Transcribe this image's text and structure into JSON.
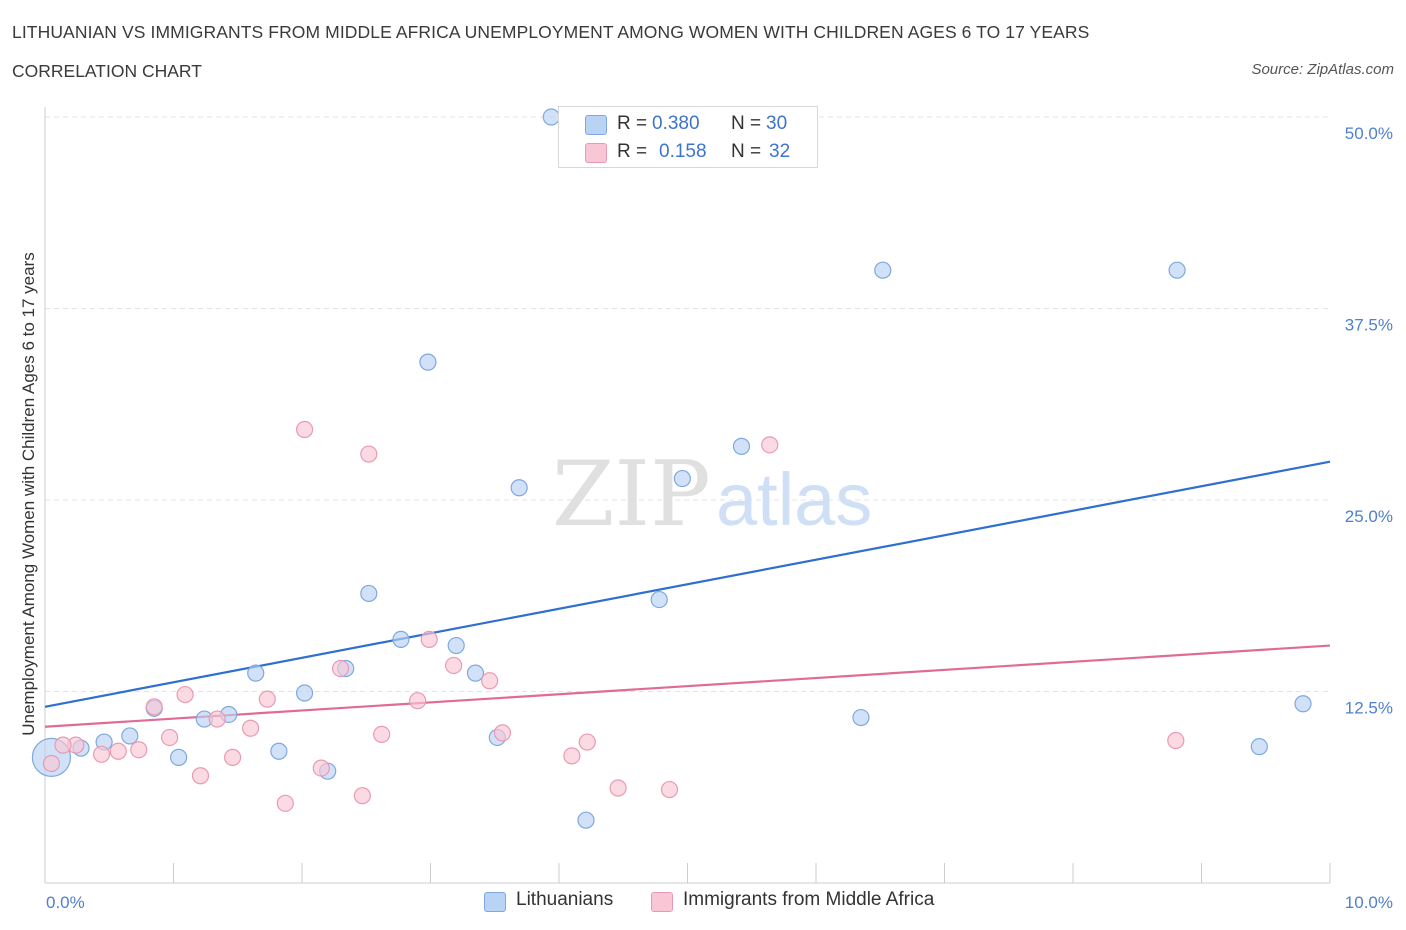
{
  "header": {
    "title": "LITHUANIAN VS IMMIGRANTS FROM MIDDLE AFRICA UNEMPLOYMENT AMONG WOMEN WITH CHILDREN AGES 6 TO 17 YEARS",
    "subtitle": "CORRELATION CHART",
    "source": "Source: ZipAtlas.com"
  },
  "watermark": {
    "zip": "ZIP",
    "atlas": "atlas"
  },
  "legend_top": {
    "rows": [
      {
        "r_label": "R =",
        "r_value": "0.380",
        "n_label": "N =",
        "n_value": "30"
      },
      {
        "r_label": "R =",
        "r_value": "0.158",
        "n_label": "N =",
        "n_value": "32"
      }
    ]
  },
  "legend_bottom": {
    "items": [
      {
        "label": "Lithuanians"
      },
      {
        "label": "Immigrants from Middle Africa"
      }
    ]
  },
  "colors": {
    "blue_fill": "#b9d3f5",
    "blue_stroke": "#7fa8e0",
    "blue_line": "#2f6fd0",
    "pink_fill": "#f9c6d6",
    "pink_stroke": "#e99ab3",
    "pink_line": "#e06c96",
    "grid": "#e3e3e3",
    "tick_label": "#4f7fcf"
  },
  "chart_data": {
    "type": "scatter",
    "title": "LITHUANIAN VS IMMIGRANTS FROM MIDDLE AFRICA UNEMPLOYMENT AMONG WOMEN WITH CHILDREN AGES 6 TO 17 YEARS",
    "xlabel": "",
    "ylabel": "Unemployment Among Women with Children Ages 6 to 17 years",
    "xlim": [
      0,
      10
    ],
    "ylim": [
      0,
      50
    ],
    "x_tick_labels": [
      "0.0%",
      "10.0%"
    ],
    "y_ticks": [
      12.5,
      25.0,
      37.5,
      50.0
    ],
    "y_tick_labels": [
      "12.5%",
      "25.0%",
      "37.5%",
      "50.0%"
    ],
    "grid": true,
    "legend_position": "bottom",
    "series": [
      {
        "name": "Lithuanians",
        "points": [
          [
            0.05,
            8.2
          ],
          [
            0.28,
            8.8
          ],
          [
            0.46,
            9.2
          ],
          [
            0.66,
            9.6
          ],
          [
            0.85,
            11.4
          ],
          [
            1.04,
            8.2
          ],
          [
            1.24,
            10.7
          ],
          [
            1.43,
            11.0
          ],
          [
            1.64,
            13.7
          ],
          [
            1.82,
            8.6
          ],
          [
            2.02,
            12.4
          ],
          [
            2.2,
            7.3
          ],
          [
            2.34,
            14.0
          ],
          [
            2.52,
            18.9
          ],
          [
            2.77,
            15.9
          ],
          [
            2.98,
            34.0
          ],
          [
            3.2,
            15.5
          ],
          [
            3.35,
            13.7
          ],
          [
            3.52,
            9.5
          ],
          [
            3.69,
            25.8
          ],
          [
            3.94,
            50.0
          ],
          [
            4.21,
            4.1
          ],
          [
            4.78,
            18.5
          ],
          [
            4.96,
            26.4
          ],
          [
            5.42,
            28.5
          ],
          [
            6.35,
            10.8
          ],
          [
            6.52,
            40.0
          ],
          [
            8.81,
            40.0
          ],
          [
            9.45,
            8.9
          ],
          [
            9.79,
            11.7
          ]
        ],
        "sizes": [
          34,
          12,
          12,
          12,
          12,
          12,
          12,
          12,
          12,
          12,
          12,
          12,
          12,
          12,
          12,
          12,
          12,
          12,
          12,
          12,
          12,
          12,
          12,
          12,
          12,
          12,
          12,
          12,
          12,
          12
        ],
        "trend": {
          "x": [
            0,
            10
          ],
          "y": [
            11.5,
            27.5
          ]
        }
      },
      {
        "name": "Immigrants from Middle Africa",
        "points": [
          [
            0.05,
            7.8
          ],
          [
            0.24,
            9.0
          ],
          [
            0.44,
            8.4
          ],
          [
            0.57,
            8.6
          ],
          [
            0.73,
            8.7
          ],
          [
            0.85,
            11.5
          ],
          [
            0.97,
            9.5
          ],
          [
            1.09,
            12.3
          ],
          [
            1.21,
            7.0
          ],
          [
            1.34,
            10.7
          ],
          [
            1.46,
            8.2
          ],
          [
            1.6,
            10.1
          ],
          [
            1.73,
            12.0
          ],
          [
            1.87,
            5.2
          ],
          [
            2.02,
            29.6
          ],
          [
            2.15,
            7.5
          ],
          [
            2.3,
            14.0
          ],
          [
            2.47,
            5.7
          ],
          [
            2.52,
            28.0
          ],
          [
            2.62,
            9.7
          ],
          [
            2.9,
            11.9
          ],
          [
            2.99,
            15.9
          ],
          [
            3.18,
            14.2
          ],
          [
            3.46,
            13.2
          ],
          [
            3.56,
            9.8
          ],
          [
            4.1,
            8.3
          ],
          [
            4.22,
            9.2
          ],
          [
            4.46,
            6.2
          ],
          [
            4.86,
            6.1
          ],
          [
            5.64,
            28.6
          ],
          [
            8.8,
            9.3
          ],
          [
            0.14,
            9.0
          ]
        ],
        "sizes": [
          12,
          12,
          12,
          12,
          12,
          12,
          12,
          12,
          12,
          12,
          12,
          12,
          12,
          12,
          12,
          12,
          12,
          12,
          12,
          12,
          12,
          12,
          12,
          12,
          12,
          12,
          12,
          12,
          12,
          12,
          12,
          12
        ],
        "trend": {
          "x": [
            0,
            10
          ],
          "y": [
            10.2,
            15.5
          ]
        }
      }
    ]
  }
}
